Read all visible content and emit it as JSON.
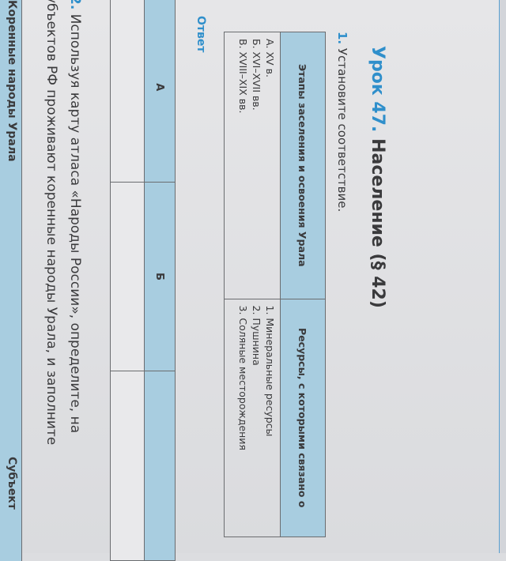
{
  "lesson": {
    "label": "Урок 47.",
    "title": "Население (§ 42)"
  },
  "task1": {
    "number": "1.",
    "text": "Установите соответствие.",
    "table": {
      "headers": [
        "Этапы заселения и освоения Урала",
        "Ресурсы, с которыми связано о"
      ],
      "left_items": [
        "А. XV в.",
        "Б. XVI–XVII вв.",
        "В. XVIII–XIX вв."
      ],
      "right_items": [
        "1. Минеральные ресурсы",
        "2. Пушнина",
        "3. Соляные месторождения"
      ]
    },
    "answer_label": "Ответ",
    "answer_columns": [
      "А",
      "Б",
      ""
    ]
  },
  "task2": {
    "number": "2.",
    "line1": "Используя карту атласа «Народы России», определите, на",
    "line2": "убъектов РФ проживают коренные народы Урала, и заполните",
    "table_headers": [
      "Коренные народы Урала",
      "Субъект"
    ]
  },
  "colors": {
    "accent": "#2f8fcb",
    "table_header": "#a8cde0",
    "paper": "#e2e2e4"
  }
}
